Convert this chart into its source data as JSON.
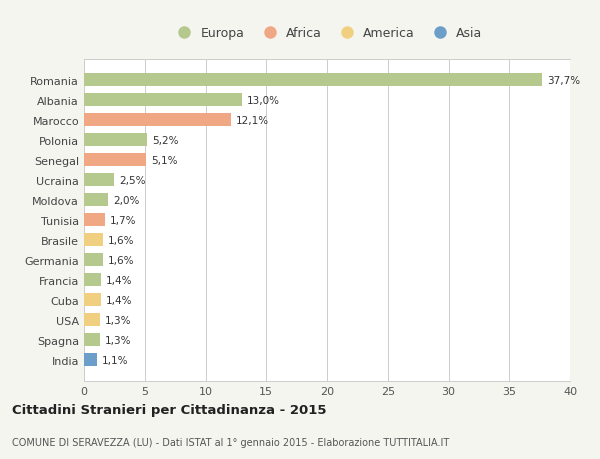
{
  "countries": [
    "Romania",
    "Albania",
    "Marocco",
    "Polonia",
    "Senegal",
    "Ucraina",
    "Moldova",
    "Tunisia",
    "Brasile",
    "Germania",
    "Francia",
    "Cuba",
    "USA",
    "Spagna",
    "India"
  ],
  "values": [
    37.7,
    13.0,
    12.1,
    5.2,
    5.1,
    2.5,
    2.0,
    1.7,
    1.6,
    1.6,
    1.4,
    1.4,
    1.3,
    1.3,
    1.1
  ],
  "labels": [
    "37,7%",
    "13,0%",
    "12,1%",
    "5,2%",
    "5,1%",
    "2,5%",
    "2,0%",
    "1,7%",
    "1,6%",
    "1,6%",
    "1,4%",
    "1,4%",
    "1,3%",
    "1,3%",
    "1,1%"
  ],
  "continents": [
    "Europa",
    "Europa",
    "Africa",
    "Europa",
    "Africa",
    "Europa",
    "Europa",
    "Africa",
    "America",
    "Europa",
    "Europa",
    "America",
    "America",
    "Europa",
    "Asia"
  ],
  "colors": {
    "Europa": "#b5c98e",
    "Africa": "#f0a884",
    "America": "#f0d080",
    "Asia": "#6b9ec8"
  },
  "title": "Cittadini Stranieri per Cittadinanza - 2015",
  "subtitle": "COMUNE DI SERAVEZZA (LU) - Dati ISTAT al 1° gennaio 2015 - Elaborazione TUTTITALIA.IT",
  "xlim": [
    0,
    40
  ],
  "xticks": [
    0,
    5,
    10,
    15,
    20,
    25,
    30,
    35,
    40
  ],
  "background_color": "#f5f5f0",
  "plot_background": "#ffffff",
  "grid_color": "#cccccc",
  "legend_order": [
    "Europa",
    "Africa",
    "America",
    "Asia"
  ]
}
